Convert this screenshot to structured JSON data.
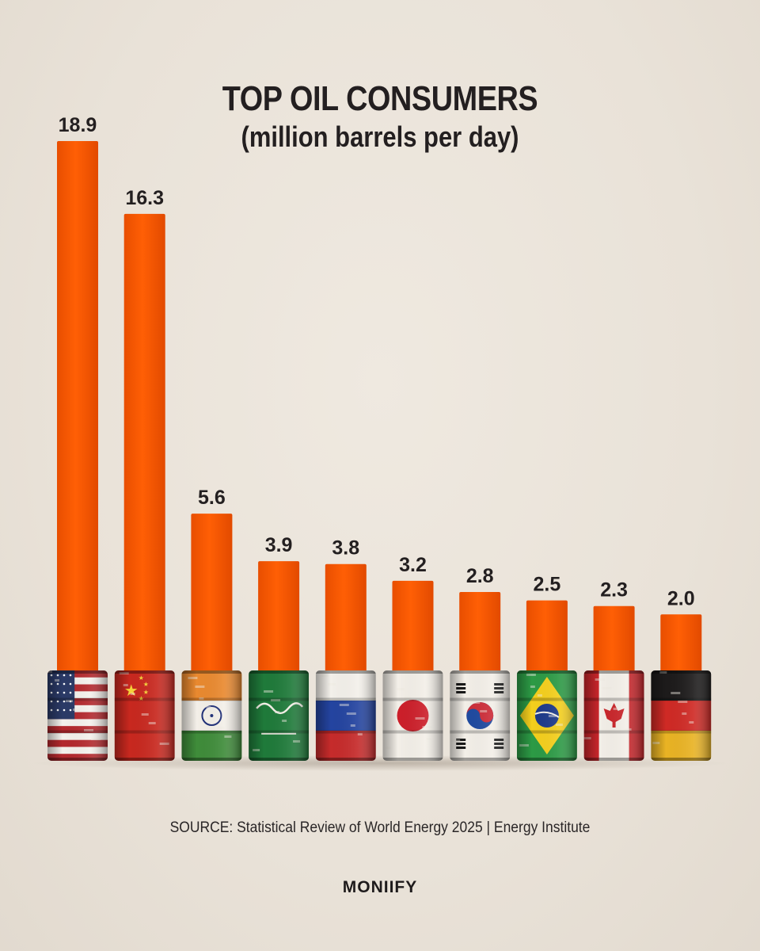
{
  "chart_data": {
    "type": "bar",
    "title": "TOP OIL CONSUMERS",
    "subtitle": "(million barrels per day)",
    "categories": [
      "United States",
      "China",
      "India",
      "Saudi Arabia",
      "Russia",
      "Japan",
      "South Korea",
      "Brazil",
      "Canada",
      "Germany"
    ],
    "values": [
      18.9,
      16.3,
      5.6,
      3.9,
      3.8,
      3.2,
      2.8,
      2.5,
      2.3,
      2.0
    ],
    "value_labels": [
      "18.9",
      "16.3",
      "5.6",
      "3.9",
      "3.8",
      "3.2",
      "2.8",
      "2.5",
      "2.3",
      "2.0"
    ],
    "unit": "million barrels per day",
    "flags": [
      "us-flag",
      "china-flag",
      "india-flag",
      "saudi-arabia-flag",
      "russia-flag",
      "japan-flag",
      "south-korea-flag",
      "brazil-flag",
      "canada-flag",
      "germany-flag"
    ],
    "bar_color": "#ff5a00",
    "ylim": [
      0,
      18.9
    ]
  },
  "footer": {
    "source": "SOURCE: Statistical Review of World Energy 2025 | Energy Institute",
    "brand": "MONIIFY"
  }
}
